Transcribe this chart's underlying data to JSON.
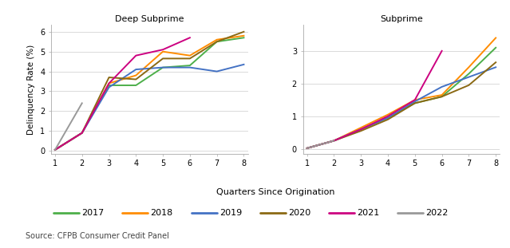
{
  "quarters": [
    1,
    2,
    3,
    4,
    5,
    6,
    7,
    8
  ],
  "deep_subprime": {
    "2017": [
      0.05,
      0.9,
      3.3,
      3.3,
      4.2,
      4.3,
      5.5,
      5.7
    ],
    "2018": [
      0.05,
      0.9,
      3.4,
      3.8,
      5.0,
      4.8,
      5.6,
      5.8
    ],
    "2019": [
      0.05,
      0.9,
      3.2,
      4.1,
      4.2,
      4.2,
      4.0,
      4.35
    ],
    "2020": [
      0.05,
      0.9,
      3.7,
      3.6,
      4.65,
      4.65,
      5.5,
      6.0
    ],
    "2021": [
      0.05,
      0.9,
      3.4,
      4.8,
      5.1,
      5.7,
      null,
      null
    ],
    "2022": [
      0.05,
      2.4,
      null,
      null,
      null,
      null,
      null,
      null
    ]
  },
  "subprime": {
    "2017": [
      0.02,
      0.25,
      0.6,
      0.95,
      1.4,
      1.6,
      2.3,
      3.1
    ],
    "2018": [
      0.02,
      0.25,
      0.65,
      1.05,
      1.5,
      1.65,
      2.5,
      3.4
    ],
    "2019": [
      0.02,
      0.25,
      0.6,
      0.95,
      1.45,
      1.9,
      2.2,
      2.5
    ],
    "2020": [
      0.02,
      0.25,
      0.55,
      0.9,
      1.4,
      1.6,
      1.95,
      2.65
    ],
    "2021": [
      0.02,
      0.25,
      0.6,
      1.0,
      1.5,
      3.0,
      null,
      null
    ],
    "2022": [
      0.02,
      0.25,
      null,
      null,
      null,
      null,
      null,
      null
    ]
  },
  "colors": {
    "2017": "#4daf4a",
    "2018": "#ff8c00",
    "2019": "#4472c4",
    "2020": "#8b6914",
    "2021": "#cc0080",
    "2022": "#999999"
  },
  "title_left": "Deep Subprime",
  "title_right": "Subprime",
  "xlabel": "Quarters Since Origination",
  "ylabel": "Delinquency Rate (%)",
  "ylim_left": [
    -0.15,
    6.35
  ],
  "ylim_right": [
    -0.15,
    3.8
  ],
  "yticks_left": [
    0,
    1,
    2,
    3,
    4,
    5,
    6
  ],
  "yticks_right": [
    0,
    1,
    2,
    3
  ],
  "source": "Source: CFPB Consumer Credit Panel",
  "legend_years": [
    "2017",
    "2018",
    "2019",
    "2020",
    "2021",
    "2022"
  ],
  "background_color": "#ffffff",
  "grid_color": "#cccccc"
}
